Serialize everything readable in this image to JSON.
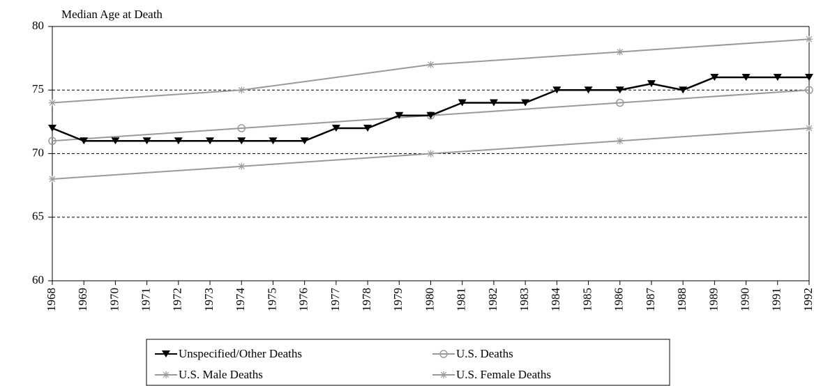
{
  "chart_data": {
    "type": "line",
    "y_label": "Median Age at Death",
    "xlim": [
      1968,
      1992
    ],
    "xticks": [
      1968,
      1969,
      1970,
      1971,
      1972,
      1973,
      1974,
      1975,
      1976,
      1977,
      1978,
      1979,
      1980,
      1981,
      1982,
      1983,
      1984,
      1985,
      1986,
      1987,
      1988,
      1989,
      1990,
      1991,
      1992
    ],
    "ylim": [
      60,
      80
    ],
    "yticks": [
      60,
      65,
      70,
      75,
      80
    ],
    "grid": true,
    "series": [
      {
        "name": "Unspecified/Other Deaths",
        "color": "#000000",
        "marker": "triangle-down",
        "x": [
          1968,
          1969,
          1970,
          1971,
          1972,
          1973,
          1974,
          1975,
          1976,
          1977,
          1978,
          1979,
          1980,
          1981,
          1982,
          1983,
          1984,
          1985,
          1986,
          1987,
          1988,
          1989,
          1990,
          1991,
          1992
        ],
        "values": [
          72,
          71,
          71,
          71,
          71,
          71,
          71,
          71,
          71,
          72,
          72,
          73,
          73,
          74,
          74,
          74,
          75,
          75,
          75,
          75.5,
          75,
          76,
          76,
          76,
          76
        ]
      },
      {
        "name": "U.S. Deaths",
        "color": "#999999",
        "marker": "circle",
        "x": [
          1968,
          1974,
          1980,
          1986,
          1992
        ],
        "values": [
          71,
          72,
          73,
          74,
          75
        ]
      },
      {
        "name": "U.S. Male Deaths",
        "color": "#999999",
        "marker": "star",
        "x": [
          1968,
          1974,
          1980,
          1986,
          1992
        ],
        "values": [
          68,
          69,
          70,
          71,
          72
        ]
      },
      {
        "name": "U.S. Female Deaths",
        "color": "#999999",
        "marker": "star",
        "x": [
          1968,
          1974,
          1980,
          1986,
          1992
        ],
        "values": [
          74,
          75,
          77,
          78,
          79
        ]
      }
    ]
  }
}
